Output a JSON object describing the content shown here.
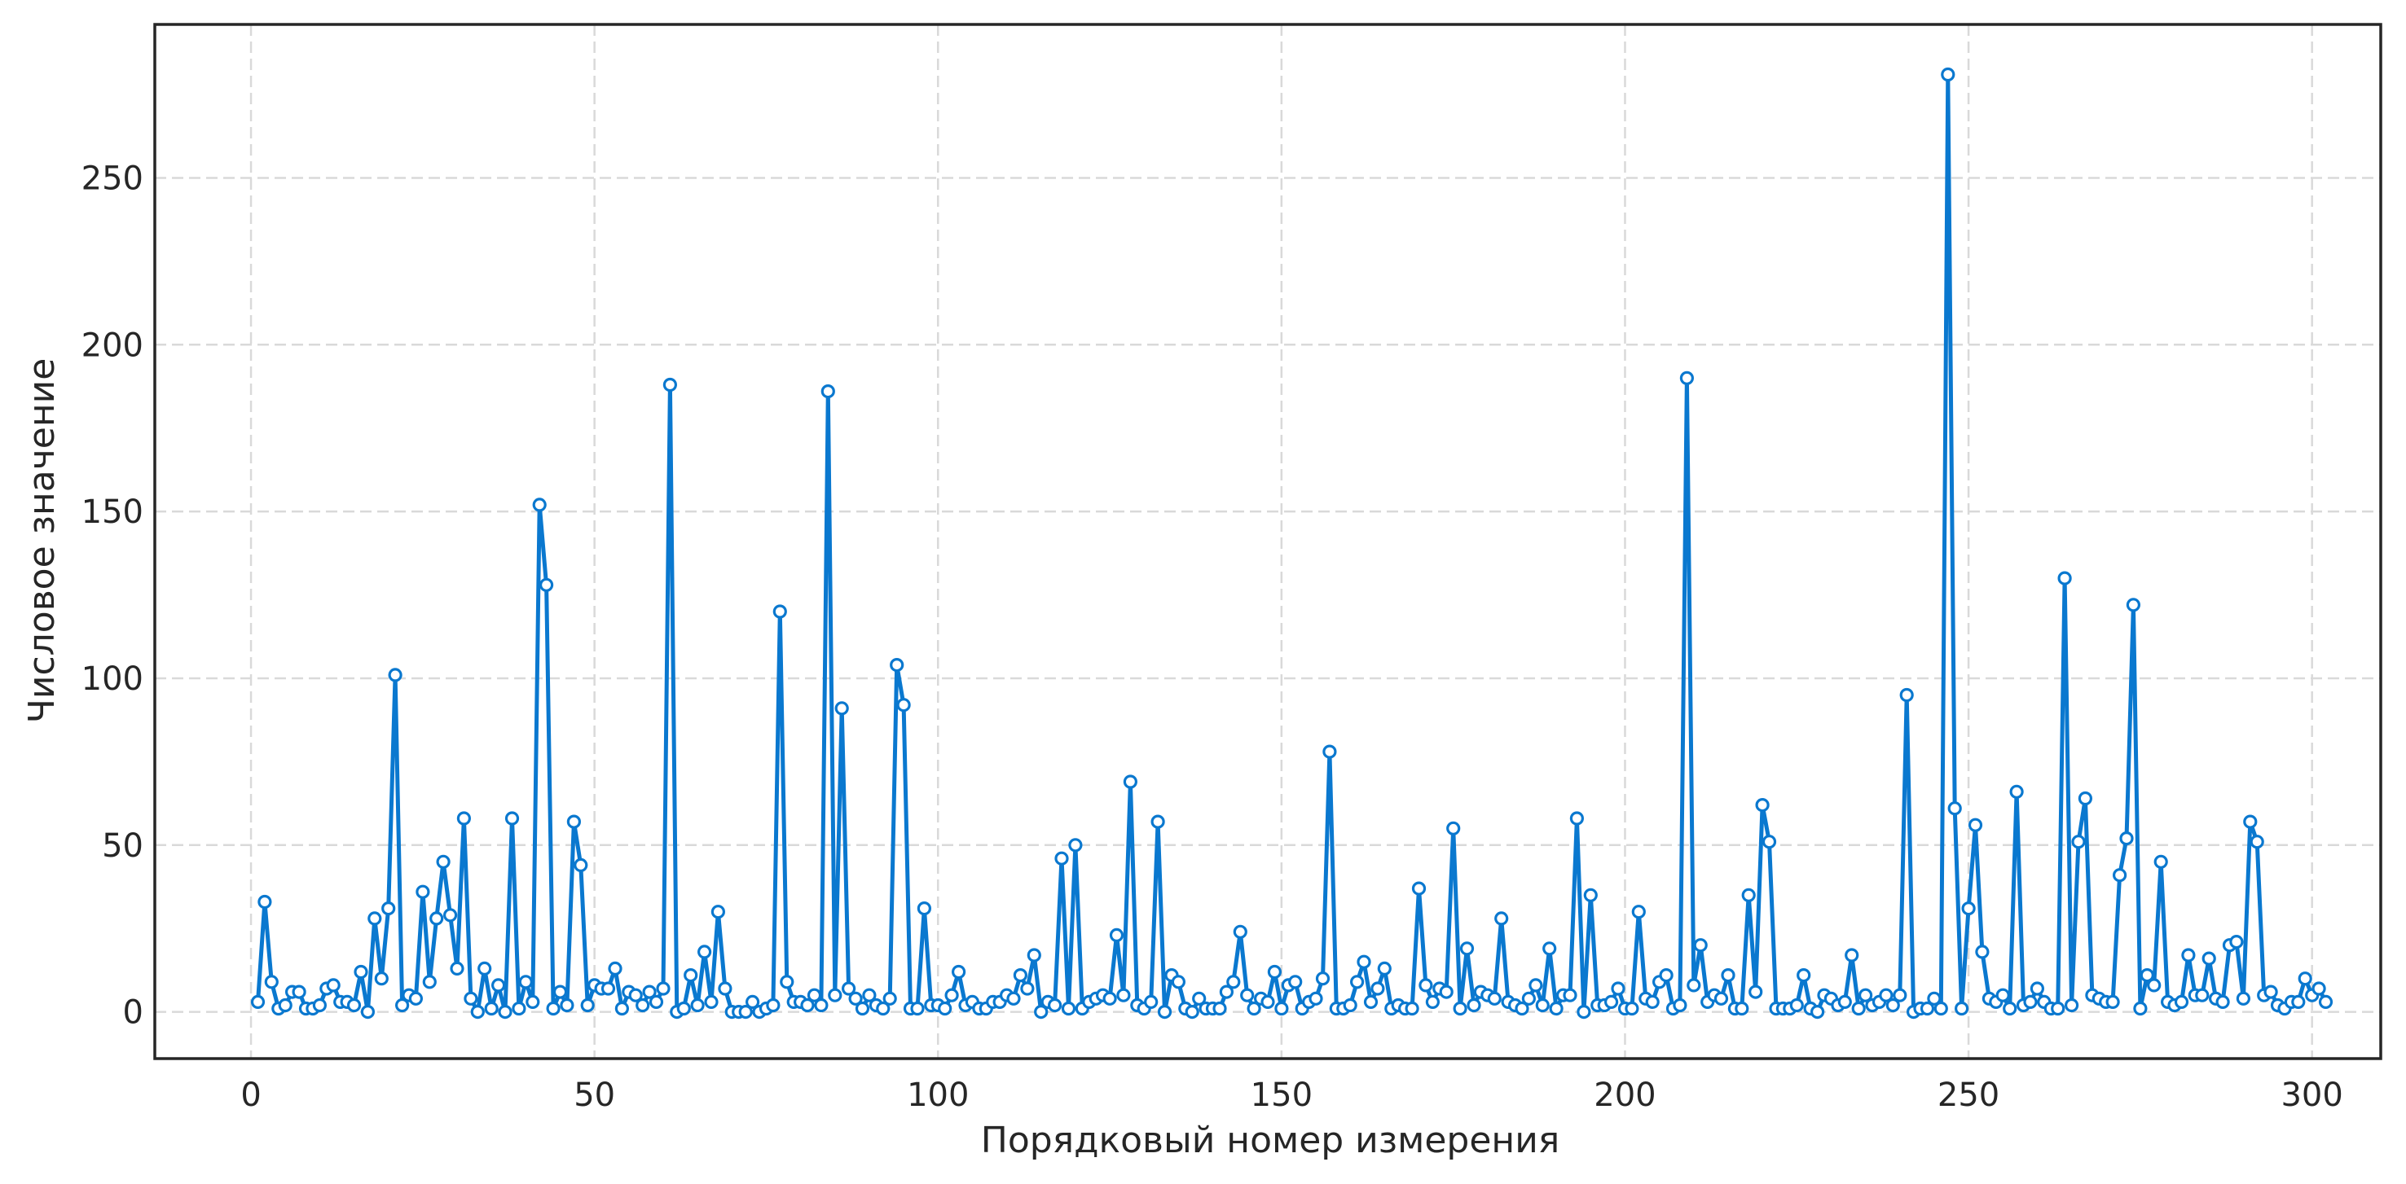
{
  "chart_data": {
    "type": "line",
    "title": "",
    "xlabel": "Порядковый номер измерения",
    "ylabel": "Числовое значение",
    "xlim": [
      -14,
      310
    ],
    "ylim": [
      -14,
      296
    ],
    "xticks": [
      0,
      50,
      100,
      150,
      200,
      250,
      300
    ],
    "yticks": [
      0,
      50,
      100,
      150,
      200,
      250
    ],
    "grid": true,
    "colors": {
      "line": "#0a78cf",
      "marker_face": "#ffffff",
      "grid": "#d9d9d9",
      "frame": "#262626"
    },
    "series": [
      {
        "x_start": 1,
        "values": [
          3,
          33,
          9,
          1,
          2,
          6,
          6,
          1,
          1,
          2,
          7,
          8,
          3,
          3,
          2,
          12,
          0,
          28,
          10,
          31,
          101,
          2,
          5,
          4,
          36,
          9,
          28,
          45,
          29,
          13,
          58,
          4,
          0,
          13,
          1,
          8,
          0,
          58,
          1,
          9,
          3,
          152,
          128,
          1,
          6,
          2,
          57,
          44,
          2,
          8,
          7,
          7,
          13,
          1,
          6,
          5,
          2,
          6,
          3,
          7,
          188,
          0,
          1,
          11,
          2,
          18,
          3,
          30,
          7,
          0,
          0,
          0,
          3,
          0,
          1,
          2,
          120,
          9,
          3,
          3,
          2,
          5,
          2,
          186,
          5,
          91,
          7,
          4,
          1,
          5,
          2,
          1,
          4,
          104,
          92,
          1,
          1,
          31,
          2,
          2,
          1,
          5,
          12,
          2,
          3,
          1,
          1,
          3,
          3,
          5,
          4,
          11,
          7,
          17,
          0,
          3,
          2,
          46,
          1,
          50,
          1,
          3,
          4,
          5,
          4,
          23,
          5,
          69,
          2,
          1,
          3,
          57,
          0,
          11,
          9,
          1,
          0,
          4,
          1,
          1,
          1,
          6,
          9,
          24,
          5,
          1,
          4,
          3,
          12,
          1,
          8,
          9,
          1,
          3,
          4,
          10,
          78,
          1,
          1,
          2,
          9,
          15,
          3,
          7,
          13,
          1,
          2,
          1,
          1,
          37,
          8,
          3,
          7,
          6,
          55,
          1,
          19,
          2,
          6,
          5,
          4,
          28,
          3,
          2,
          1,
          4,
          8,
          2,
          19,
          1,
          5,
          5,
          58,
          0,
          35,
          2,
          2,
          3,
          7,
          1,
          1,
          30,
          4,
          3,
          9,
          11,
          1,
          2,
          190,
          8,
          20,
          3,
          5,
          4,
          11,
          1,
          1,
          35,
          6,
          62,
          51,
          1,
          1,
          1,
          2,
          11,
          1,
          0,
          5,
          4,
          2,
          3,
          17,
          1,
          5,
          2,
          3,
          5,
          2,
          5,
          95,
          0,
          1,
          1,
          4,
          1,
          281,
          61,
          1,
          31,
          56,
          18,
          4,
          3,
          5,
          1,
          66,
          2,
          3,
          7,
          3,
          1,
          1,
          130,
          2,
          51,
          64,
          5,
          4,
          3,
          3,
          41,
          52,
          122,
          1,
          11,
          8,
          45,
          3,
          2,
          3,
          17,
          5,
          5,
          16,
          4,
          3,
          20,
          21,
          4,
          57,
          51,
          5,
          6,
          2,
          1,
          3,
          3,
          10,
          5,
          7,
          3
        ]
      }
    ]
  }
}
